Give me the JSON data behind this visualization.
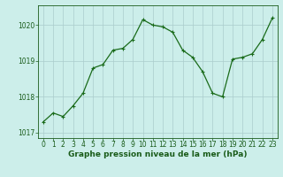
{
  "x": [
    0,
    1,
    2,
    3,
    4,
    5,
    6,
    7,
    8,
    9,
    10,
    11,
    12,
    13,
    14,
    15,
    16,
    17,
    18,
    19,
    20,
    21,
    22,
    23
  ],
  "y": [
    1017.3,
    1017.55,
    1017.45,
    1017.75,
    1018.1,
    1018.8,
    1018.9,
    1019.3,
    1019.35,
    1019.6,
    1020.15,
    1020.0,
    1019.95,
    1019.8,
    1019.3,
    1019.1,
    1018.7,
    1018.1,
    1018.0,
    1019.05,
    1019.1,
    1019.2,
    1019.6,
    1020.2
  ],
  "line_color": "#1a6b1a",
  "marker": "+",
  "marker_size": 3,
  "linewidth": 0.9,
  "bg_color": "#cceeea",
  "grid_color": "#aacccc",
  "xlabel": "Graphe pression niveau de la mer (hPa)",
  "xlabel_color": "#1a5c1a",
  "xlabel_fontsize": 6.5,
  "tick_color": "#1a5c1a",
  "tick_fontsize": 5.5,
  "ylim": [
    1016.85,
    1020.55
  ],
  "yticks": [
    1017,
    1018,
    1019,
    1020
  ],
  "xlim": [
    -0.5,
    23.5
  ],
  "xticks": [
    0,
    1,
    2,
    3,
    4,
    5,
    6,
    7,
    8,
    9,
    10,
    11,
    12,
    13,
    14,
    15,
    16,
    17,
    18,
    19,
    20,
    21,
    22,
    23
  ],
  "border_color": "#1a5c1a"
}
